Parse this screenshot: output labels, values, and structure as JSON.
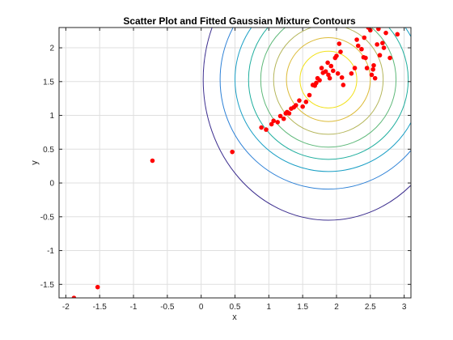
{
  "chart_data": {
    "type": "scatter",
    "title": "Scatter Plot and Fitted Gaussian Mixture Contours",
    "xlabel": "x",
    "ylabel": "y",
    "xlim": [
      -2.1,
      3.1
    ],
    "ylim": [
      -1.7,
      2.3
    ],
    "xticks": [
      -2,
      -1.5,
      -1,
      -0.5,
      0,
      0.5,
      1,
      1.5,
      2,
      2.5,
      3
    ],
    "xtick_labels": [
      "-2",
      "-1.5",
      "-1",
      "-0.5",
      "0",
      "0.5",
      "1",
      "1.5",
      "2",
      "2.5",
      "3"
    ],
    "yticks": [
      -1.5,
      -1,
      -0.5,
      0,
      0.5,
      1,
      1.5,
      2
    ],
    "ytick_labels": [
      "-1.5",
      "-1",
      "-0.5",
      "0",
      "0.5",
      "1",
      "1.5",
      "2"
    ],
    "grid": true,
    "colors": {
      "points": "#ff0000",
      "frame": "#262626",
      "grid": "#dfdfdf"
    },
    "points": {
      "x": [
        -1.88,
        -1.53,
        -0.72,
        0.46,
        0.89,
        0.96,
        1.04,
        1.07,
        1.13,
        1.17,
        1.22,
        1.25,
        1.27,
        1.3,
        1.33,
        1.37,
        1.4,
        1.45,
        1.5,
        1.55,
        1.6,
        1.65,
        1.68,
        1.7,
        1.72,
        1.75,
        1.78,
        1.8,
        1.84,
        1.87,
        1.88,
        1.9,
        1.92,
        1.95,
        1.98,
        2.0,
        2.02,
        2.04,
        2.06,
        2.08,
        2.1,
        2.22,
        2.27,
        2.3,
        2.32,
        2.37,
        2.4,
        2.41,
        2.43,
        2.45,
        2.47,
        2.5,
        2.52,
        2.54,
        2.55,
        2.57,
        2.6,
        2.62,
        2.64,
        2.68,
        2.7,
        2.73,
        2.79,
        2.9
      ],
      "y": [
        -1.7,
        -1.54,
        0.33,
        0.46,
        0.82,
        0.79,
        0.87,
        0.92,
        0.9,
        0.99,
        0.95,
        1.03,
        1.05,
        1.03,
        1.1,
        1.12,
        1.15,
        1.22,
        1.13,
        1.2,
        1.3,
        1.45,
        1.44,
        1.48,
        1.55,
        1.52,
        1.7,
        1.63,
        1.65,
        1.78,
        1.6,
        1.55,
        1.73,
        1.66,
        1.85,
        1.88,
        1.62,
        2.06,
        1.94,
        1.56,
        1.45,
        1.62,
        1.7,
        2.12,
        2.03,
        1.98,
        1.86,
        2.15,
        1.85,
        1.7,
        2.3,
        2.26,
        1.6,
        1.68,
        1.74,
        1.55,
        2.05,
        2.28,
        1.89,
        2.07,
        2.0,
        2.22,
        1.85,
        2.2
      ]
    },
    "contours": {
      "center": [
        1.88,
        1.53
      ],
      "levels": [
        {
          "rx": 0.42,
          "ry": 0.42,
          "color": "#f2e11c"
        },
        {
          "rx": 0.62,
          "ry": 0.62,
          "color": "#dcbb38"
        },
        {
          "rx": 0.81,
          "ry": 0.81,
          "color": "#b5b65b"
        },
        {
          "rx": 1.0,
          "ry": 1.0,
          "color": "#5fb97a"
        },
        {
          "rx": 1.18,
          "ry": 1.18,
          "color": "#1fae9e"
        },
        {
          "rx": 1.38,
          "ry": 1.36,
          "color": "#1a9fc5"
        },
        {
          "rx": 1.6,
          "ry": 1.62,
          "color": "#2c80d6"
        },
        {
          "rx": 1.85,
          "ry": 2.08,
          "color": "#3d2f8f"
        }
      ]
    }
  }
}
